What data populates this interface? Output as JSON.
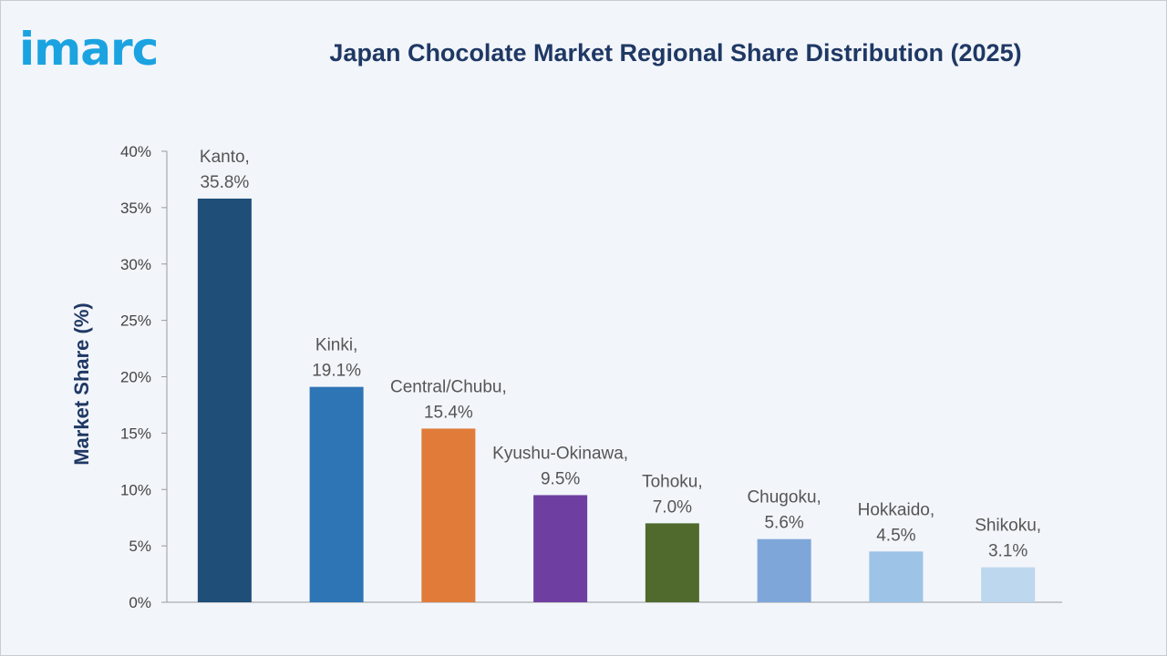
{
  "brand": {
    "logo_text": "imarc",
    "logo_color": "#1aa3e0"
  },
  "chart_data": {
    "type": "bar",
    "title": "Japan Chocolate Market Regional Share Distribution (2025)",
    "ylabel": "Market Share (%)",
    "xlabel": "",
    "ylim": [
      0,
      40
    ],
    "yticks": [
      0,
      5,
      10,
      15,
      20,
      25,
      30,
      35,
      40
    ],
    "ytick_suffix": "%",
    "grid": false,
    "title_color": "#1f3864",
    "categories": [
      "Kanto",
      "Kinki",
      "Central/Chubu",
      "Kyushu-Okinawa",
      "Tohoku",
      "Chugoku",
      "Hokkaido",
      "Shikoku"
    ],
    "values": [
      35.8,
      19.1,
      15.4,
      9.5,
      7.0,
      5.6,
      4.5,
      3.1
    ],
    "value_labels": [
      "35.8%",
      "19.1%",
      "15.4%",
      "9.5%",
      "7.0%",
      "5.6%",
      "4.5%",
      "3.1%"
    ],
    "colors": [
      "#1f4e79",
      "#2e75b6",
      "#e07b39",
      "#6e3fa0",
      "#4f6a2c",
      "#7ea6d9",
      "#9dc3e6",
      "#bdd7ee"
    ]
  }
}
